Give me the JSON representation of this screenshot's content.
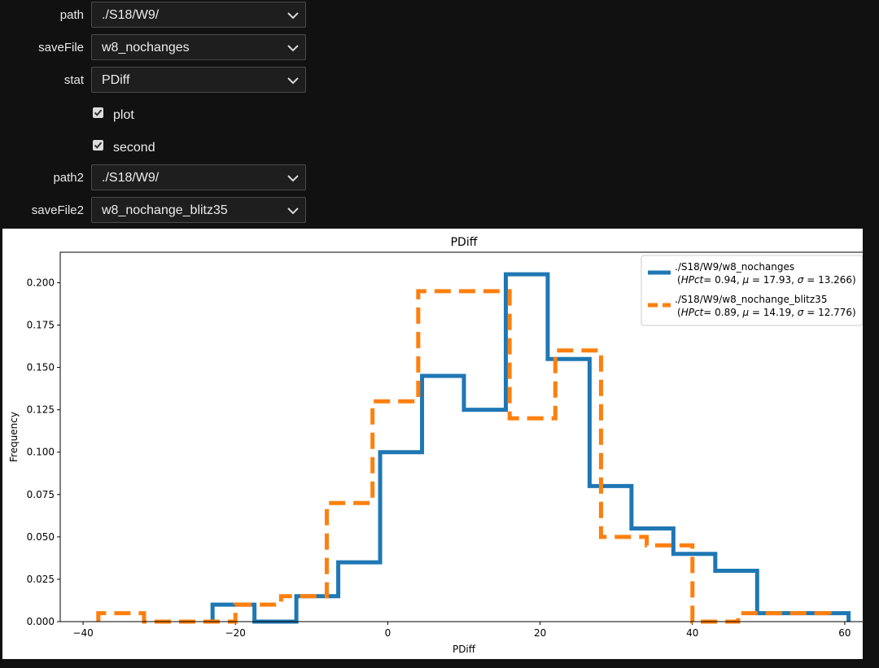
{
  "form": {
    "path": {
      "label": "path",
      "value": "./S18/W9/"
    },
    "saveFile": {
      "label": "saveFile",
      "value": "w8_nochanges"
    },
    "stat": {
      "label": "stat",
      "value": "PDiff"
    },
    "plot": {
      "label": "plot",
      "checked": true
    },
    "second": {
      "label": "second",
      "checked": true
    },
    "path2": {
      "label": "path2",
      "value": "./S18/W9/"
    },
    "saveFile2": {
      "label": "saveFile2",
      "value": "w8_nochange_blitz35"
    }
  },
  "chart_data": {
    "type": "step-histogram",
    "title": "PDiff",
    "xlabel": "PDiff",
    "ylabel": "Frequency",
    "xlim": [
      -43,
      63
    ],
    "ylim": [
      0,
      0.218
    ],
    "xticks": [
      -40,
      -20,
      0,
      20,
      40,
      60
    ],
    "xtick_labels": [
      "−40",
      "−20",
      "0",
      "20",
      "40",
      "60"
    ],
    "yticks": [
      0,
      0.025,
      0.05,
      0.075,
      0.1,
      0.125,
      0.15,
      0.175,
      0.2
    ],
    "ytick_labels": [
      "0.000",
      "0.025",
      "0.050",
      "0.075",
      "0.100",
      "0.125",
      "0.150",
      "0.175",
      "0.200"
    ],
    "legend_position": "upper-right",
    "series": [
      {
        "name": "./S18/W9/w8_nochanges",
        "stats_prefix": "(",
        "stats_hpct_label": "HPct",
        "stats_hpct_value": "= 0.94, ",
        "stats_mu_value": "= 17.93, ",
        "stats_sigma_value": "= 13.266)",
        "color": "#1f77b4",
        "style": "solid",
        "edges": [
          -23,
          -17.5,
          -12,
          -6.5,
          -1,
          4.5,
          10,
          15.5,
          21,
          26.5,
          32,
          37.5,
          43,
          48.5,
          54,
          60.5
        ],
        "values": [
          0.01,
          0,
          0.015,
          0.035,
          0.1,
          0.145,
          0.125,
          0.205,
          0.155,
          0.08,
          0.055,
          0.04,
          0.03,
          0.005,
          0.005
        ]
      },
      {
        "name": "./S18/W9/w8_nochange_blitz35",
        "stats_prefix": "(",
        "stats_hpct_label": "HPct",
        "stats_hpct_value": "= 0.89, ",
        "stats_mu_value": "= 14.19, ",
        "stats_sigma_value": "= 12.776)",
        "color": "#ff7f0e",
        "style": "dashed",
        "edges": [
          -38,
          -32,
          -26,
          -20,
          -14,
          -8,
          -2,
          4,
          10,
          16,
          22,
          28,
          34,
          40,
          46,
          52,
          58
        ],
        "values": [
          0.005,
          0,
          0,
          0.01,
          0.015,
          0.07,
          0.13,
          0.195,
          0.195,
          0.12,
          0.16,
          0.05,
          0.045,
          0,
          0.005,
          0.005
        ]
      }
    ]
  },
  "colors": {
    "page_bg": "#111111",
    "field_bg": "#1e1e1e",
    "field_border": "#4a4a4a"
  }
}
